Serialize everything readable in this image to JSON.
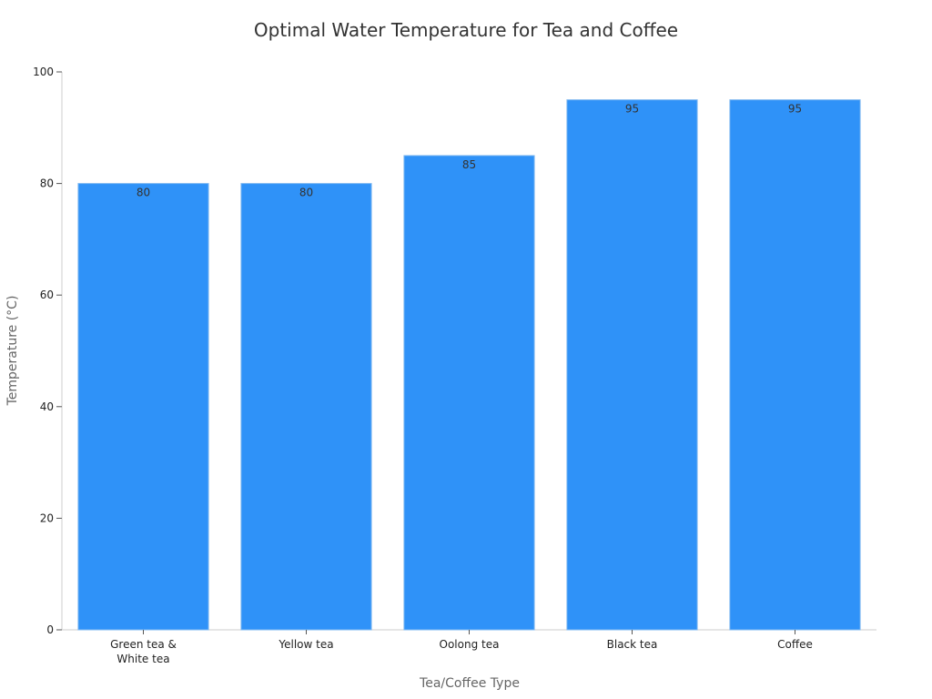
{
  "chart_data": {
    "type": "bar",
    "title": "Optimal Water Temperature for Tea and Coffee",
    "xlabel": "Tea/Coffee Type",
    "ylabel": "Temperature (°C)",
    "categories": [
      "Green tea &\nWhite tea",
      "Yellow tea",
      "Oolong tea",
      "Black tea",
      "Coffee"
    ],
    "values": [
      80,
      80,
      85,
      95,
      95
    ],
    "ylim": [
      0,
      100
    ],
    "yticks": [
      0,
      20,
      40,
      60,
      80,
      100
    ],
    "grid": false,
    "legend": "none",
    "bar_color": "#2f92f8"
  }
}
